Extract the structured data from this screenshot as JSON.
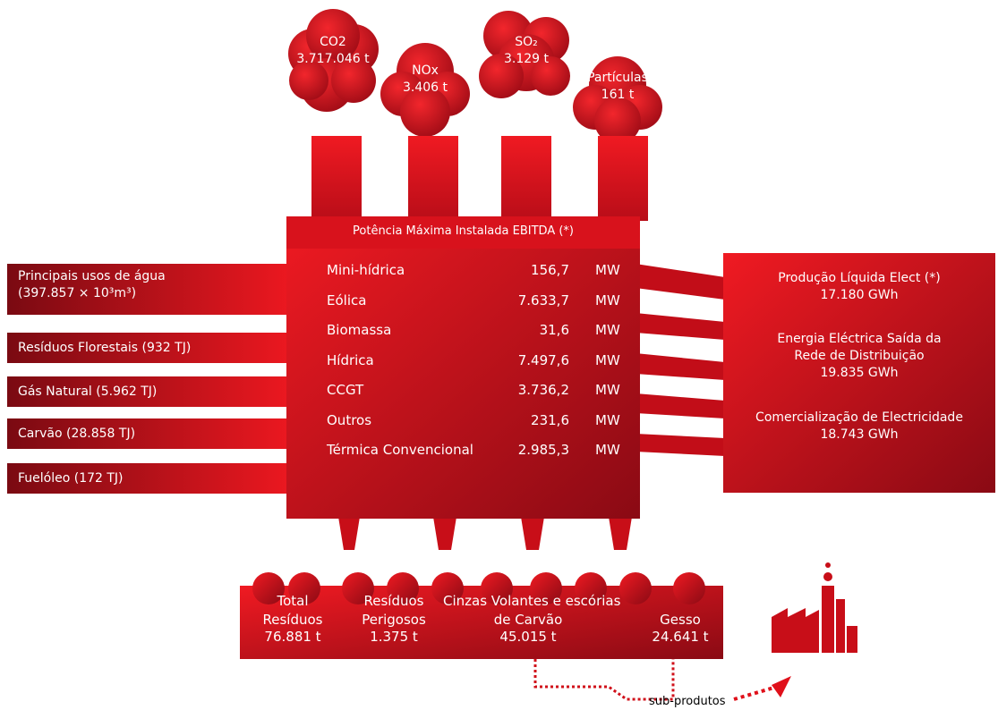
{
  "emissions": [
    {
      "label": "CO2",
      "value": "3.717.046 t"
    },
    {
      "label": "NOx",
      "value": "3.406 t"
    },
    {
      "label": "SO₂",
      "value": "3.129 t"
    },
    {
      "label": "Partículas",
      "value": "161 t"
    }
  ],
  "plant": {
    "title": "Potência Máxima Instalada EBITDA (*)",
    "rows": [
      [
        "Mini-hídrica",
        "156,7",
        "MW"
      ],
      [
        "Eólica",
        "7.633,7",
        "MW"
      ],
      [
        "Biomassa",
        "31,6",
        "MW"
      ],
      [
        "Hídrica",
        "7.497,6",
        "MW"
      ],
      [
        "CCGT",
        "3.736,2",
        "MW"
      ],
      [
        "Outros",
        "231,6",
        "MW"
      ],
      [
        "Térmica Convencional",
        "2.985,3",
        "MW"
      ]
    ]
  },
  "inputs": [
    [
      "Principais usos de água",
      "(397.857 × 10³m³)"
    ],
    [
      "Resíduos Florestais (932 TJ)"
    ],
    [
      "Gás Natural (5.962 TJ)"
    ],
    [
      "Carvão (28.858 TJ)"
    ],
    [
      "Fuelóleo (172 TJ)"
    ]
  ],
  "outputs": [
    {
      "label": [
        "Produção Líquida Elect (*)"
      ],
      "value": "17.180 GWh"
    },
    {
      "label": [
        "Energia Eléctrica Saída da",
        "Rede de Distribuição"
      ],
      "value": "19.835 GWh"
    },
    {
      "label": [
        "Comercialização de Electricidade"
      ],
      "value": "18.743 GWh"
    }
  ],
  "wastes": [
    {
      "label": [
        "Total",
        "Resíduos"
      ],
      "value": "76.881 t"
    },
    {
      "label": [
        "Resíduos",
        "Perigosos"
      ],
      "value": "1.375 t"
    },
    {
      "label": [
        "Cinzas Volantes e escórias",
        "de Carvão"
      ],
      "value": "45.015 t"
    },
    {
      "label": [
        "Gesso"
      ],
      "value": "24.641 t"
    }
  ],
  "byproducts": "sub-produtos"
}
